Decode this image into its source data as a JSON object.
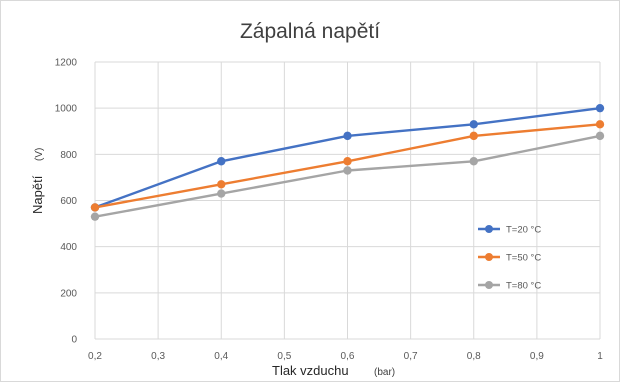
{
  "chart_data": {
    "type": "line",
    "title": "Zápalná napětí",
    "xlabel": "Tlak vzduchu",
    "xlabel_unit": "(bar)",
    "ylabel": "Napětí",
    "ylabel_unit": "(V)",
    "x": [
      0.2,
      0.4,
      0.6,
      0.8,
      1.0
    ],
    "xlim": [
      0.2,
      1.0
    ],
    "ylim": [
      0,
      1200
    ],
    "x_ticks": [
      "0,2",
      "0,3",
      "0,4",
      "0,5",
      "0,6",
      "0,7",
      "0,8",
      "0,9",
      "1"
    ],
    "y_ticks": [
      "0",
      "200",
      "400",
      "600",
      "800",
      "1000",
      "1200"
    ],
    "grid": true,
    "legend_position": "right",
    "series": [
      {
        "name": "T=20 °C",
        "color": "#4472c4",
        "values": [
          570,
          770,
          880,
          930,
          1000
        ]
      },
      {
        "name": "T=50 °C",
        "color": "#ed7d31",
        "values": [
          570,
          670,
          770,
          880,
          930
        ]
      },
      {
        "name": "T=80 °C",
        "color": "#a5a5a5",
        "values": [
          530,
          630,
          730,
          770,
          880
        ]
      }
    ]
  }
}
